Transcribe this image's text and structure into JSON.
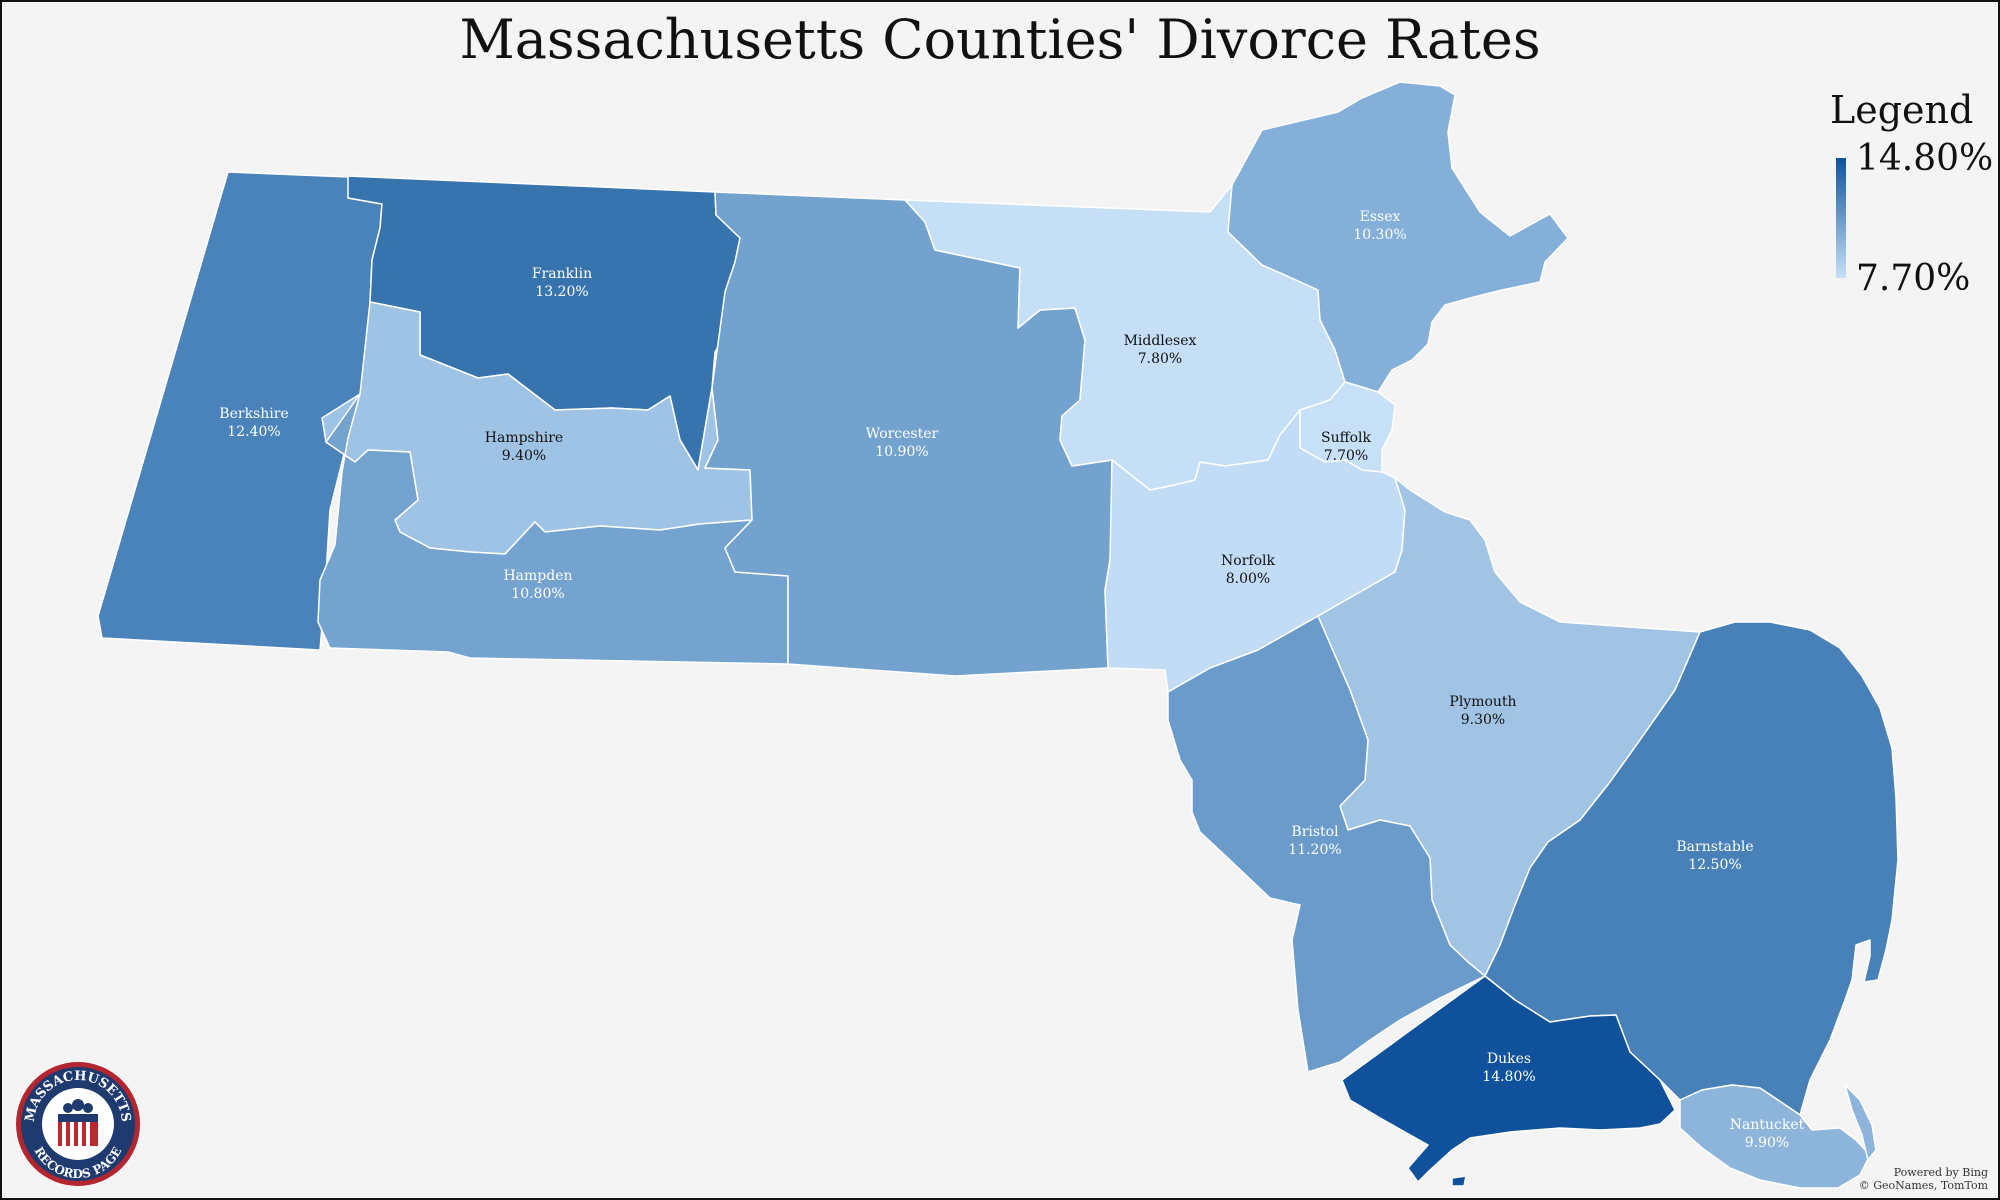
{
  "title": "Massachusetts Counties' Divorce Rates",
  "legend": {
    "title": "Legend",
    "max_label": "14.80%",
    "min_label": "7.70%",
    "max_color": "#0f529b",
    "min_color": "#c6e0f7"
  },
  "counties": [
    {
      "name": "Berkshire",
      "rate": "12.40%",
      "color": "#4a82ba",
      "text_color": "#ffffff"
    },
    {
      "name": "Franklin",
      "rate": "13.20%",
      "color": "#3774ae",
      "text_color": "#ffffff"
    },
    {
      "name": "Hampshire",
      "rate": "9.40%",
      "color": "#9fc3e5",
      "text_color": "#111111"
    },
    {
      "name": "Hampden",
      "rate": "10.80%",
      "color": "#74a3cf",
      "text_color": "#ffffff"
    },
    {
      "name": "Worcester",
      "rate": "10.90%",
      "color": "#73a2ce",
      "text_color": "#ffffff"
    },
    {
      "name": "Middlesex",
      "rate": "7.80%",
      "color": "#c4dff6",
      "text_color": "#111111"
    },
    {
      "name": "Essex",
      "rate": "10.30%",
      "color": "#84afd8",
      "text_color": "#ffffff"
    },
    {
      "name": "Suffolk",
      "rate": "7.70%",
      "color": "#c6e0f7",
      "text_color": "#111111"
    },
    {
      "name": "Norfolk",
      "rate": "8.00%",
      "color": "#c1dcf4",
      "text_color": "#111111"
    },
    {
      "name": "Plymouth",
      "rate": "9.30%",
      "color": "#a1c4e5",
      "text_color": "#111111"
    },
    {
      "name": "Bristol",
      "rate": "11.20%",
      "color": "#6b9bcb",
      "text_color": "#ffffff"
    },
    {
      "name": "Barnstable",
      "rate": "12.50%",
      "color": "#4880b8",
      "text_color": "#ffffff"
    },
    {
      "name": "Dukes",
      "rate": "14.80%",
      "color": "#0f529b",
      "text_color": "#ffffff"
    },
    {
      "name": "Nantucket",
      "rate": "9.90%",
      "color": "#8db5dc",
      "text_color": "#ffffff"
    }
  ],
  "logo": {
    "top_text": "MASSACHUSETTS",
    "bottom_text": "RECORDS PAGE"
  },
  "credit": {
    "line1": "Powered by Bing",
    "line2": "© GeoNames, TomTom"
  }
}
